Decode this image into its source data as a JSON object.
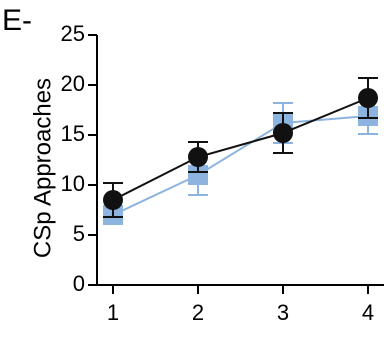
{
  "panel_label": "E-",
  "chart_data": {
    "type": "line",
    "title": "",
    "xlabel": "",
    "ylabel": "CSp Approaches",
    "x": [
      1,
      2,
      3,
      4
    ],
    "x_tick_labels": [
      "1",
      "2",
      "3",
      "4"
    ],
    "ylim": [
      0,
      25
    ],
    "y_ticks": [
      0,
      5,
      10,
      15,
      20,
      25
    ],
    "y_tick_labels": [
      "0",
      "5",
      "10",
      "15",
      "20",
      "25"
    ],
    "grid": false,
    "legend": "none",
    "series": [
      {
        "marker": "circle",
        "color": "#111111",
        "values": [
          8.5,
          12.8,
          15.2,
          18.7
        ],
        "error": [
          1.7,
          1.5,
          2.0,
          2.0
        ]
      },
      {
        "marker": "square",
        "color": "#8db4de",
        "values": [
          7.0,
          11.0,
          16.2,
          16.9
        ],
        "error": [
          0.8,
          2.0,
          2.0,
          1.8
        ]
      }
    ]
  }
}
